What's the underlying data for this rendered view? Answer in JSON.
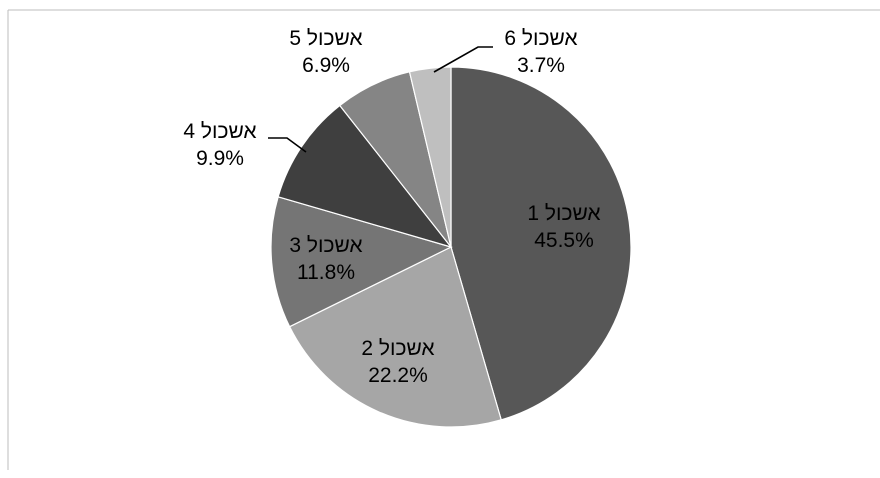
{
  "chart_data": {
    "type": "pie",
    "slices": [
      {
        "label": "אשכול 1",
        "value": 45.5,
        "value_text": "45.5%",
        "color": "#575757"
      },
      {
        "label": "אשכול 2",
        "value": 22.2,
        "value_text": "22.2%",
        "color": "#a6a6a6"
      },
      {
        "label": "אשכול 3",
        "value": 11.8,
        "value_text": "11.8%",
        "color": "#757575"
      },
      {
        "label": "אשכול 4",
        "value": 9.9,
        "value_text": "9.9%",
        "color": "#3f3f3f"
      },
      {
        "label": "אשכול 5",
        "value": 6.9,
        "value_text": "6.9%",
        "color": "#858585"
      },
      {
        "label": "אשכול 6",
        "value": 3.7,
        "value_text": "3.7%",
        "color": "#bfbfbf"
      }
    ],
    "start_angle": "12 o'clock",
    "direction": "clockwise",
    "legend": "none",
    "data_labels": "category name and percentage"
  }
}
